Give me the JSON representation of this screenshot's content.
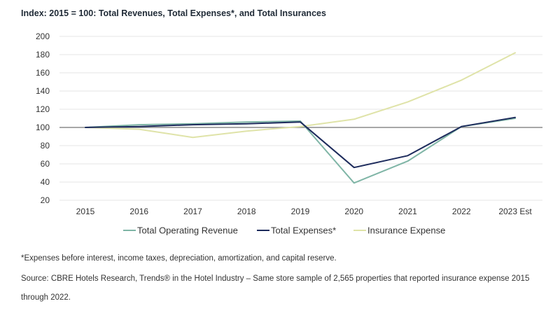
{
  "chart_data": {
    "type": "line",
    "title": "Index: 2015 = 100:  Total Revenues, Total Expenses*, and Total Insurances",
    "categories": [
      "2015",
      "2016",
      "2017",
      "2018",
      "2019",
      "2020",
      "2021",
      "2022",
      "2023 Est"
    ],
    "yticks": [
      "200",
      "180",
      "160",
      "140",
      "120",
      "100",
      "80",
      "60",
      "40",
      "20"
    ],
    "ylim": [
      20,
      200
    ],
    "reference_line": 100,
    "grid": "horizontal",
    "legend_position": "bottom",
    "series": [
      {
        "name": "Total Operating Revenue",
        "color": "#7fb5a6",
        "values": [
          100,
          103,
          104,
          106,
          107,
          39,
          63,
          101,
          110
        ]
      },
      {
        "name": "Total Expenses*",
        "color": "#1d2b5c",
        "values": [
          100,
          101,
          103,
          104,
          106,
          56,
          69,
          101,
          111
        ]
      },
      {
        "name": "Insurance Expense",
        "color": "#dfe3a8",
        "values": [
          100,
          98,
          89,
          96,
          101,
          109,
          128,
          152,
          182
        ]
      }
    ]
  },
  "footnotes": {
    "expenses": "*Expenses before interest, income taxes, depreciation, amortization, and capital reserve.",
    "source_line1": "Source: CBRE Hotels Research, Trends® in the Hotel Industry – Same store sample of 2,565 properties that reported insurance expense 2015",
    "source_line2": "through 2022."
  }
}
